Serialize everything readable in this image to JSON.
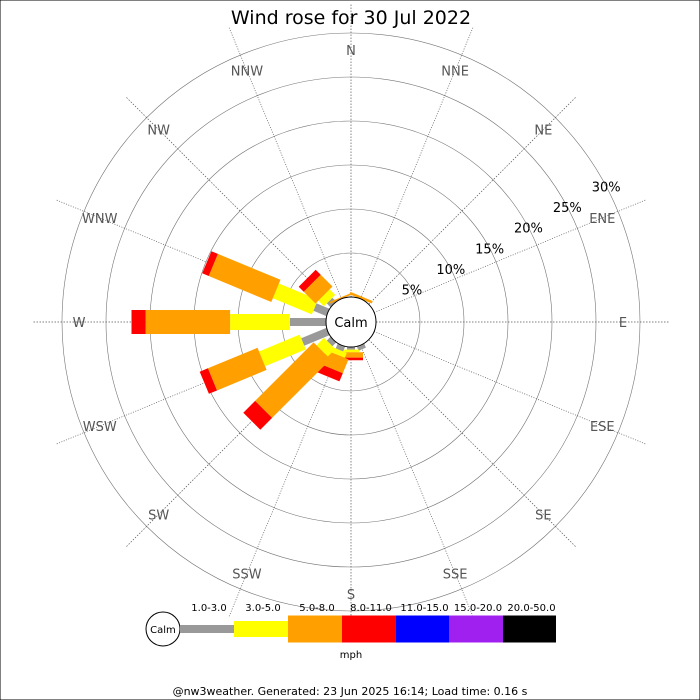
{
  "chart_data": {
    "type": "wind-rose",
    "title": "Wind rose for 30 Jul 2022",
    "directions": [
      "N",
      "NNE",
      "NE",
      "ENE",
      "E",
      "ESE",
      "SE",
      "SSE",
      "S",
      "SSW",
      "SW",
      "WSW",
      "W",
      "WNW",
      "NW",
      "NNW"
    ],
    "rings_percent": [
      5,
      10,
      15,
      20,
      25,
      30
    ],
    "ring_labels": [
      "5%",
      "10%",
      "15%",
      "20%",
      "25%",
      "30%"
    ],
    "calm_label": "Calm",
    "speed_bins": [
      "1.0-3.0",
      "3.0-5.0",
      "5.0-8.0",
      "8.0-11.0",
      "11.0-15.0",
      "15.0-20.0",
      "20.0-50.0"
    ],
    "bin_colors": [
      "#999999",
      "#ffff00",
      "#ffa000",
      "#ff0000",
      "#0000ff",
      "#a020f0",
      "#000000"
    ],
    "units": "mph",
    "series": [
      {
        "direction": "N",
        "cumulative_percent": [
          0,
          0,
          0,
          0,
          0,
          0,
          0
        ]
      },
      {
        "direction": "NNE",
        "cumulative_percent": [
          0,
          0,
          0.3,
          0.3,
          0.3,
          0.3,
          0.3
        ]
      },
      {
        "direction": "NE",
        "cumulative_percent": [
          0,
          0,
          0,
          0,
          0,
          0,
          0
        ]
      },
      {
        "direction": "ENE",
        "cumulative_percent": [
          0,
          0,
          0,
          0,
          0,
          0,
          0
        ]
      },
      {
        "direction": "E",
        "cumulative_percent": [
          0,
          0,
          0,
          0,
          0,
          0,
          0
        ]
      },
      {
        "direction": "ESE",
        "cumulative_percent": [
          0,
          0,
          0,
          0,
          0,
          0,
          0
        ]
      },
      {
        "direction": "SE",
        "cumulative_percent": [
          0,
          0,
          0,
          0,
          0,
          0,
          0
        ]
      },
      {
        "direction": "SSE",
        "cumulative_percent": [
          0.5,
          0.5,
          0.5,
          0.5,
          0.5,
          0.5,
          0.5
        ]
      },
      {
        "direction": "S",
        "cumulative_percent": [
          0.3,
          0.6,
          1.2,
          1.5,
          1.5,
          1.5,
          1.5
        ]
      },
      {
        "direction": "SSW",
        "cumulative_percent": [
          0.6,
          1.2,
          2.9,
          3.9,
          3.9,
          3.9,
          3.9
        ]
      },
      {
        "direction": "SW",
        "cumulative_percent": [
          0.6,
          1.8,
          11.2,
          13.1,
          13.1,
          13.1,
          13.1
        ]
      },
      {
        "direction": "WSW",
        "cumulative_percent": [
          3.1,
          8.1,
          14.2,
          15.2,
          15.2,
          15.2,
          15.2
        ]
      },
      {
        "direction": "W",
        "cumulative_percent": [
          4.1,
          10.9,
          20.5,
          22.1,
          22.1,
          22.1,
          22.1
        ]
      },
      {
        "direction": "WNW",
        "cumulative_percent": [
          1.6,
          6.4,
          14.1,
          14.9,
          14.9,
          14.9,
          14.9
        ]
      },
      {
        "direction": "NW",
        "cumulative_percent": [
          0.6,
          1.5,
          3.4,
          4.2,
          4.2,
          4.2,
          4.2
        ]
      },
      {
        "direction": "NNW",
        "cumulative_percent": [
          0,
          0,
          0.2,
          0.2,
          0.2,
          0.2,
          0.2
        ]
      }
    ]
  },
  "footer": "@nw3weather. Generated: 23 Jun 2025 16:14; Load time: 0.16 s"
}
